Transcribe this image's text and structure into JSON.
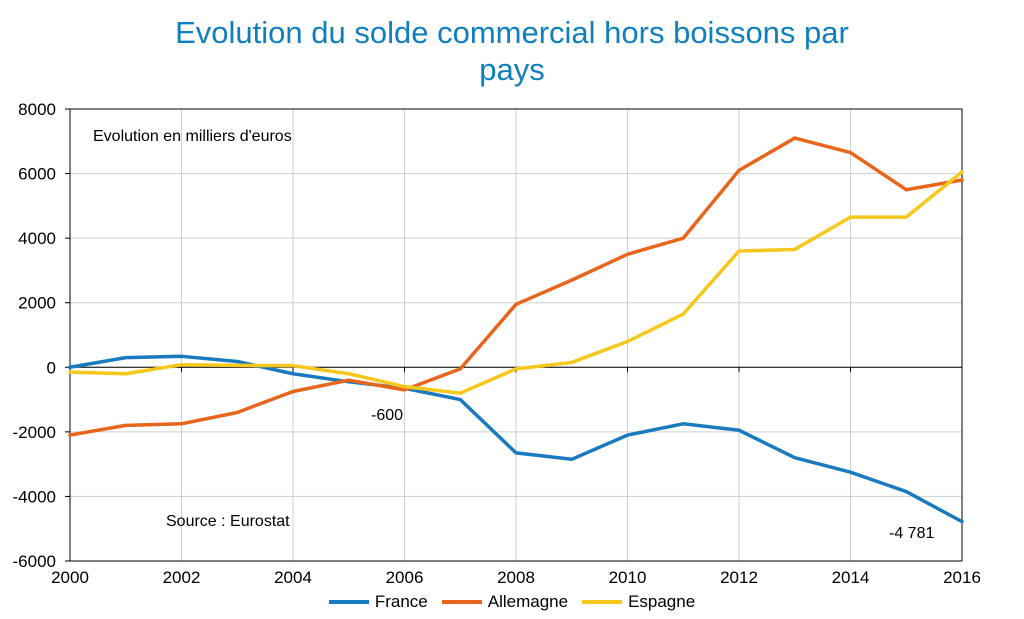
{
  "chart_data": {
    "type": "line",
    "title_line1": "Evolution du solde commercial hors boissons par",
    "title_line2": "pays",
    "subtitle": "Evolution en milliers d'euros",
    "source": "Source : Eurostat",
    "xlabel": "",
    "ylabel": "",
    "x": [
      2000,
      2001,
      2002,
      2003,
      2004,
      2005,
      2006,
      2007,
      2008,
      2009,
      2010,
      2011,
      2012,
      2013,
      2014,
      2015,
      2016
    ],
    "xticks": [
      2000,
      2002,
      2004,
      2006,
      2008,
      2010,
      2012,
      2014,
      2016
    ],
    "yticks": [
      8000,
      6000,
      4000,
      2000,
      0,
      -2000,
      -4000,
      -6000
    ],
    "xlim": [
      2000,
      2016
    ],
    "ylim": [
      -6000,
      8000
    ],
    "grid": true,
    "legend_position": "bottom",
    "series": [
      {
        "name": "France",
        "color": "#1a7abf",
        "values": [
          0,
          300,
          340,
          180,
          -200,
          -450,
          -650,
          -1000,
          -2650,
          -2850,
          -2100,
          -1750,
          -1950,
          -2800,
          -3250,
          -3850,
          -4781
        ]
      },
      {
        "name": "Allemagne",
        "color": "#e8661c",
        "values": [
          -2100,
          -1800,
          -1750,
          -1400,
          -750,
          -400,
          -700,
          -50,
          1950,
          2700,
          3500,
          4000,
          6100,
          7100,
          6650,
          5500,
          5800
        ]
      },
      {
        "name": "Espagne",
        "color": "#f6c81b",
        "values": [
          -150,
          -200,
          80,
          60,
          50,
          -200,
          -600,
          -800,
          -50,
          150,
          800,
          1650,
          3600,
          3650,
          4650,
          4650,
          6050
        ]
      }
    ],
    "annotations": [
      {
        "text": "-600",
        "x": 2006,
        "y": -600
      },
      {
        "text": "-4 781",
        "x": 2016,
        "y": -4781
      }
    ]
  }
}
